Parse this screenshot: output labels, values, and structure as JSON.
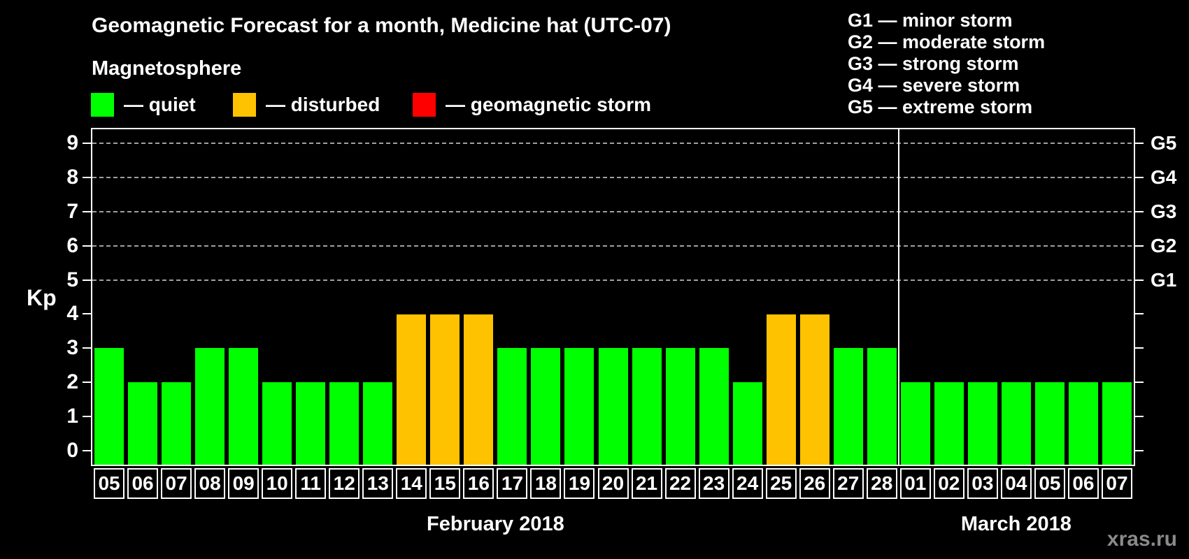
{
  "header": {
    "title": "Geomagnetic Forecast for a month, Medicine hat (UTC-07)",
    "subtitle": "Magnetosphere"
  },
  "legend": {
    "items": [
      {
        "key": "quiet",
        "label": "— quiet",
        "color": "#00ff00"
      },
      {
        "key": "disturbed",
        "label": "— disturbed",
        "color": "#ffc200"
      },
      {
        "key": "storm",
        "label": "— geomagnetic storm",
        "color": "#ff0000"
      }
    ]
  },
  "storm_scale": {
    "items": [
      {
        "code": "G1",
        "label": "G1 — minor storm"
      },
      {
        "code": "G2",
        "label": "G2 — moderate storm"
      },
      {
        "code": "G3",
        "label": "G3 — strong storm"
      },
      {
        "code": "G4",
        "label": "G4 — severe storm"
      },
      {
        "code": "G5",
        "label": "G5 — extreme storm"
      }
    ]
  },
  "watermark": "xras.ru",
  "chart_data": {
    "type": "bar",
    "ylabel": "Kp",
    "ylim": [
      0,
      9
    ],
    "yticks_left": [
      0,
      1,
      2,
      3,
      4,
      5,
      6,
      7,
      8,
      9
    ],
    "right_axis": [
      {
        "kp": 5,
        "label": "G1"
      },
      {
        "kp": 6,
        "label": "G2"
      },
      {
        "kp": 7,
        "label": "G3"
      },
      {
        "kp": 8,
        "label": "G4"
      },
      {
        "kp": 9,
        "label": "G5"
      }
    ],
    "gridlines": [
      5,
      6,
      7,
      8,
      9
    ],
    "grid": "dashed horizontal lines at storm levels Kp 5-9",
    "legend_position": "top-left",
    "state_colors": {
      "quiet": "#00ff00",
      "disturbed": "#ffc200",
      "storm": "#ff0000"
    },
    "months": [
      {
        "label": "February 2018",
        "days": [
          {
            "day": "05",
            "kp": 3,
            "state": "quiet"
          },
          {
            "day": "06",
            "kp": 2,
            "state": "quiet"
          },
          {
            "day": "07",
            "kp": 2,
            "state": "quiet"
          },
          {
            "day": "08",
            "kp": 3,
            "state": "quiet"
          },
          {
            "day": "09",
            "kp": 3,
            "state": "quiet"
          },
          {
            "day": "10",
            "kp": 2,
            "state": "quiet"
          },
          {
            "day": "11",
            "kp": 2,
            "state": "quiet"
          },
          {
            "day": "12",
            "kp": 2,
            "state": "quiet"
          },
          {
            "day": "13",
            "kp": 2,
            "state": "quiet"
          },
          {
            "day": "14",
            "kp": 4,
            "state": "disturbed"
          },
          {
            "day": "15",
            "kp": 4,
            "state": "disturbed"
          },
          {
            "day": "16",
            "kp": 4,
            "state": "disturbed"
          },
          {
            "day": "17",
            "kp": 3,
            "state": "quiet"
          },
          {
            "day": "18",
            "kp": 3,
            "state": "quiet"
          },
          {
            "day": "19",
            "kp": 3,
            "state": "quiet"
          },
          {
            "day": "20",
            "kp": 3,
            "state": "quiet"
          },
          {
            "day": "21",
            "kp": 3,
            "state": "quiet"
          },
          {
            "day": "22",
            "kp": 3,
            "state": "quiet"
          },
          {
            "day": "23",
            "kp": 3,
            "state": "quiet"
          },
          {
            "day": "24",
            "kp": 2,
            "state": "quiet"
          },
          {
            "day": "25",
            "kp": 4,
            "state": "disturbed"
          },
          {
            "day": "26",
            "kp": 4,
            "state": "disturbed"
          },
          {
            "day": "27",
            "kp": 3,
            "state": "quiet"
          },
          {
            "day": "28",
            "kp": 3,
            "state": "quiet"
          }
        ]
      },
      {
        "label": "March 2018",
        "days": [
          {
            "day": "01",
            "kp": 2,
            "state": "quiet"
          },
          {
            "day": "02",
            "kp": 2,
            "state": "quiet"
          },
          {
            "day": "03",
            "kp": 2,
            "state": "quiet"
          },
          {
            "day": "04",
            "kp": 2,
            "state": "quiet"
          },
          {
            "day": "05",
            "kp": 2,
            "state": "quiet"
          },
          {
            "day": "06",
            "kp": 2,
            "state": "quiet"
          },
          {
            "day": "07",
            "kp": 2,
            "state": "quiet"
          }
        ]
      }
    ]
  }
}
